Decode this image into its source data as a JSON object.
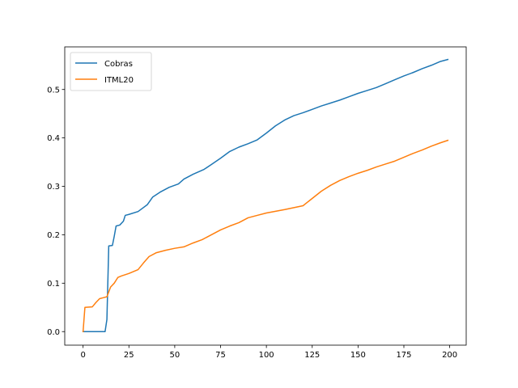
{
  "chart_data": {
    "type": "line",
    "title": "",
    "xlabel": "",
    "ylabel": "",
    "xlim": [
      -10,
      209
    ],
    "ylim": [
      -0.028,
      0.588
    ],
    "xticks": [
      0,
      25,
      50,
      75,
      100,
      125,
      150,
      175,
      200
    ],
    "xtick_labels": [
      "0",
      "25",
      "50",
      "75",
      "100",
      "125",
      "150",
      "175",
      "200"
    ],
    "yticks": [
      0.0,
      0.1,
      0.2,
      0.3,
      0.4,
      0.5
    ],
    "ytick_labels": [
      "0.0",
      "0.1",
      "0.2",
      "0.3",
      "0.4",
      "0.5"
    ],
    "grid": false,
    "legend": {
      "placement": "top-left"
    },
    "series": [
      {
        "name": "Cobras",
        "color": "#1f77b4",
        "x": [
          0,
          12,
          13,
          14,
          16,
          17,
          18,
          20,
          22,
          23,
          25,
          30,
          35,
          38,
          42,
          47,
          52,
          55,
          60,
          66,
          70,
          75,
          80,
          85,
          90,
          95,
          100,
          105,
          110,
          115,
          120,
          125,
          130,
          135,
          140,
          145,
          150,
          155,
          160,
          165,
          170,
          175,
          180,
          185,
          190,
          195,
          199
        ],
        "y": [
          0.0,
          0.0,
          0.025,
          0.177,
          0.178,
          0.197,
          0.218,
          0.22,
          0.228,
          0.24,
          0.242,
          0.248,
          0.262,
          0.278,
          0.288,
          0.298,
          0.305,
          0.315,
          0.325,
          0.335,
          0.345,
          0.358,
          0.372,
          0.381,
          0.388,
          0.396,
          0.41,
          0.425,
          0.437,
          0.446,
          0.452,
          0.459,
          0.466,
          0.472,
          0.478,
          0.485,
          0.492,
          0.498,
          0.504,
          0.512,
          0.52,
          0.528,
          0.535,
          0.543,
          0.55,
          0.558,
          0.562
        ]
      },
      {
        "name": "ITML20",
        "color": "#ff7f0e",
        "x": [
          0,
          1,
          5,
          7,
          9,
          11,
          13,
          15,
          17,
          19,
          21,
          25,
          30,
          33,
          36,
          40,
          45,
          50,
          55,
          60,
          65,
          70,
          75,
          80,
          85,
          90,
          95,
          100,
          110,
          120,
          125,
          130,
          135,
          140,
          145,
          150,
          155,
          160,
          165,
          170,
          175,
          180,
          185,
          190,
          195,
          199
        ],
        "y": [
          0.0,
          0.05,
          0.051,
          0.06,
          0.068,
          0.07,
          0.072,
          0.092,
          0.1,
          0.112,
          0.115,
          0.12,
          0.128,
          0.142,
          0.155,
          0.163,
          0.168,
          0.172,
          0.175,
          0.183,
          0.19,
          0.2,
          0.21,
          0.218,
          0.225,
          0.235,
          0.24,
          0.245,
          0.252,
          0.26,
          0.275,
          0.29,
          0.302,
          0.312,
          0.32,
          0.327,
          0.333,
          0.34,
          0.346,
          0.352,
          0.36,
          0.368,
          0.375,
          0.383,
          0.39,
          0.395
        ]
      }
    ]
  }
}
